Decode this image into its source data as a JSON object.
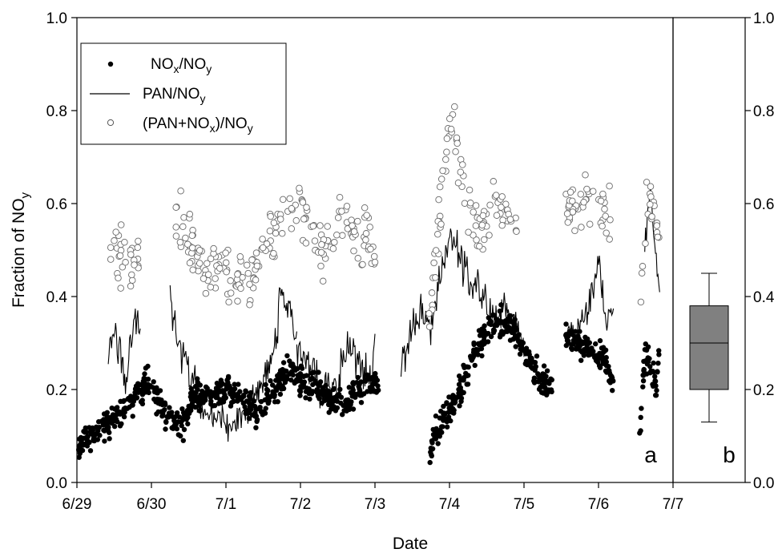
{
  "chart_data": [
    {
      "panel": "a",
      "type": "scatter",
      "panel_label": "a",
      "xlabel": "Date",
      "ylabel_main": "Fraction of NO",
      "ylabel_sub": "y",
      "x_ticks": [
        "6/29",
        "6/30",
        "7/1",
        "7/2",
        "7/3",
        "7/4",
        "7/5",
        "7/6",
        "7/7"
      ],
      "y_ticks": [
        "0.0",
        "0.2",
        "0.4",
        "0.6",
        "0.8",
        "1.0"
      ],
      "xlim": [
        0,
        8
      ],
      "ylim": [
        0,
        1
      ],
      "grid": false,
      "legend_position": "top-left",
      "legend": [
        {
          "main": "NO",
          "sub1": "x",
          "mid": "/NO",
          "sub2": "y",
          "tail": "",
          "marker": "filled-circle"
        },
        {
          "main": "PAN/NO",
          "sub1": "y",
          "mid": "",
          "sub2": "",
          "tail": "",
          "marker": "line"
        },
        {
          "main": "(PAN+NO",
          "sub1": "x",
          "mid": ")/NO",
          "sub2": "y",
          "tail": "",
          "marker": "open-circle"
        }
      ],
      "series": [
        {
          "name": "NOx/NOy",
          "marker": "filled-circle",
          "segments": [
            {
              "start": 0.02,
              "end": 1.55,
              "points": [
                [
                  0.02,
                  0.08
                ],
                [
                  0.25,
                  0.11
                ],
                [
                  0.5,
                  0.14
                ],
                [
                  0.7,
                  0.17
                ],
                [
                  0.85,
                  0.2
                ],
                [
                  1.0,
                  0.22
                ],
                [
                  1.15,
                  0.15
                ],
                [
                  1.3,
                  0.12
                ],
                [
                  1.45,
                  0.13
                ],
                [
                  1.55,
                  0.18
                ]
              ]
            },
            {
              "start": 1.55,
              "end": 2.95,
              "points": [
                [
                  1.55,
                  0.18
                ],
                [
                  1.8,
                  0.19
                ],
                [
                  2.0,
                  0.2
                ],
                [
                  2.2,
                  0.18
                ],
                [
                  2.45,
                  0.15
                ],
                [
                  2.65,
                  0.2
                ],
                [
                  2.85,
                  0.25
                ],
                [
                  2.95,
                  0.22
                ]
              ]
            },
            {
              "start": 2.95,
              "end": 4.05,
              "points": [
                [
                  2.95,
                  0.22
                ],
                [
                  3.2,
                  0.21
                ],
                [
                  3.4,
                  0.18
                ],
                [
                  3.6,
                  0.17
                ],
                [
                  3.8,
                  0.2
                ],
                [
                  4.0,
                  0.22
                ],
                [
                  4.05,
                  0.2
                ]
              ]
            },
            {
              "start": 4.72,
              "end": 6.4,
              "points": [
                [
                  4.72,
                  0.07
                ],
                [
                  4.9,
                  0.13
                ],
                [
                  5.05,
                  0.17
                ],
                [
                  5.2,
                  0.22
                ],
                [
                  5.4,
                  0.3
                ],
                [
                  5.6,
                  0.35
                ],
                [
                  5.8,
                  0.34
                ],
                [
                  5.95,
                  0.3
                ],
                [
                  6.1,
                  0.25
                ],
                [
                  6.25,
                  0.22
                ],
                [
                  6.4,
                  0.2
                ]
              ]
            },
            {
              "start": 6.55,
              "end": 7.2,
              "points": [
                [
                  6.55,
                  0.32
                ],
                [
                  6.75,
                  0.3
                ],
                [
                  6.95,
                  0.28
                ],
                [
                  7.1,
                  0.26
                ],
                [
                  7.2,
                  0.22
                ]
              ]
            },
            {
              "start": 7.55,
              "end": 7.82,
              "points": [
                [
                  7.55,
                  0.08
                ],
                [
                  7.62,
                  0.28
                ],
                [
                  7.7,
                  0.25
                ],
                [
                  7.78,
                  0.2
                ],
                [
                  7.82,
                  0.3
                ]
              ]
            }
          ]
        },
        {
          "name": "PAN/NOy",
          "marker": "line",
          "segments": [
            {
              "start": 0.42,
              "end": 0.85,
              "points": [
                [
                  0.42,
                  0.28
                ],
                [
                  0.55,
                  0.3
                ],
                [
                  0.65,
                  0.22
                ],
                [
                  0.75,
                  0.33
                ],
                [
                  0.85,
                  0.36
                ]
              ]
            },
            {
              "start": 1.25,
              "end": 2.95,
              "points": [
                [
                  1.25,
                  0.4
                ],
                [
                  1.35,
                  0.3
                ],
                [
                  1.5,
                  0.25
                ],
                [
                  1.65,
                  0.17
                ],
                [
                  1.85,
                  0.14
                ],
                [
                  2.05,
                  0.12
                ],
                [
                  2.25,
                  0.14
                ],
                [
                  2.45,
                  0.2
                ],
                [
                  2.65,
                  0.28
                ],
                [
                  2.75,
                  0.42
                ],
                [
                  2.85,
                  0.38
                ],
                [
                  2.95,
                  0.3
                ]
              ]
            },
            {
              "start": 2.95,
              "end": 4.0,
              "points": [
                [
                  2.95,
                  0.3
                ],
                [
                  3.1,
                  0.25
                ],
                [
                  3.3,
                  0.2
                ],
                [
                  3.5,
                  0.22
                ],
                [
                  3.65,
                  0.3
                ],
                [
                  3.8,
                  0.26
                ],
                [
                  3.95,
                  0.22
                ],
                [
                  4.0,
                  0.3
                ]
              ]
            },
            {
              "start": 4.35,
              "end": 6.0,
              "points": [
                [
                  4.35,
                  0.25
                ],
                [
                  4.55,
                  0.36
                ],
                [
                  4.75,
                  0.34
                ],
                [
                  4.9,
                  0.45
                ],
                [
                  5.0,
                  0.55
                ],
                [
                  5.1,
                  0.5
                ],
                [
                  5.25,
                  0.45
                ],
                [
                  5.45,
                  0.4
                ],
                [
                  5.6,
                  0.35
                ],
                [
                  5.75,
                  0.38
                ],
                [
                  5.9,
                  0.33
                ],
                [
                  6.0,
                  0.28
                ]
              ]
            },
            {
              "start": 6.58,
              "end": 7.2,
              "points": [
                [
                  6.58,
                  0.3
                ],
                [
                  6.75,
                  0.34
                ],
                [
                  6.9,
                  0.38
                ],
                [
                  7.0,
                  0.48
                ],
                [
                  7.1,
                  0.36
                ],
                [
                  7.2,
                  0.38
                ]
              ]
            },
            {
              "start": 7.62,
              "end": 7.82,
              "points": [
                [
                  7.62,
                  0.52
                ],
                [
                  7.7,
                  0.62
                ],
                [
                  7.76,
                  0.5
                ],
                [
                  7.82,
                  0.4
                ]
              ]
            }
          ]
        },
        {
          "name": "(PAN+NOx)/NOy",
          "marker": "open-circle",
          "segments": [
            {
              "start": 0.45,
              "end": 0.85,
              "points": [
                [
                  0.45,
                  0.48
                ],
                [
                  0.6,
                  0.5
                ],
                [
                  0.75,
                  0.47
                ],
                [
                  0.85,
                  0.52
                ]
              ]
            },
            {
              "start": 1.3,
              "end": 2.95,
              "points": [
                [
                  1.3,
                  0.6
                ],
                [
                  1.45,
                  0.55
                ],
                [
                  1.6,
                  0.5
                ],
                [
                  1.75,
                  0.43
                ],
                [
                  1.95,
                  0.48
                ],
                [
                  2.15,
                  0.43
                ],
                [
                  2.35,
                  0.45
                ],
                [
                  2.55,
                  0.5
                ],
                [
                  2.75,
                  0.56
                ],
                [
                  2.95,
                  0.6
                ]
              ]
            },
            {
              "start": 2.95,
              "end": 4.0,
              "points": [
                [
                  2.95,
                  0.6
                ],
                [
                  3.1,
                  0.55
                ],
                [
                  3.25,
                  0.48
                ],
                [
                  3.45,
                  0.52
                ],
                [
                  3.6,
                  0.57
                ],
                [
                  3.75,
                  0.5
                ],
                [
                  3.9,
                  0.55
                ],
                [
                  4.0,
                  0.5
                ]
              ]
            },
            {
              "start": 4.72,
              "end": 5.9,
              "points": [
                [
                  4.72,
                  0.35
                ],
                [
                  4.85,
                  0.55
                ],
                [
                  4.95,
                  0.7
                ],
                [
                  5.05,
                  0.8
                ],
                [
                  5.15,
                  0.65
                ],
                [
                  5.3,
                  0.58
                ],
                [
                  5.45,
                  0.55
                ],
                [
                  5.6,
                  0.6
                ],
                [
                  5.75,
                  0.58
                ],
                [
                  5.9,
                  0.55
                ]
              ]
            },
            {
              "start": 6.55,
              "end": 7.2,
              "points": [
                [
                  6.55,
                  0.6
                ],
                [
                  6.7,
                  0.58
                ],
                [
                  6.85,
                  0.62
                ],
                [
                  7.0,
                  0.6
                ],
                [
                  7.1,
                  0.58
                ],
                [
                  7.2,
                  0.62
                ]
              ]
            },
            {
              "start": 7.55,
              "end": 7.82,
              "points": [
                [
                  7.55,
                  0.35
                ],
                [
                  7.65,
                  0.6
                ],
                [
                  7.72,
                  0.58
                ],
                [
                  7.82,
                  0.5
                ]
              ]
            }
          ]
        }
      ]
    },
    {
      "panel": "b",
      "type": "box",
      "panel_label": "b",
      "ylim": [
        0,
        1
      ],
      "y_ticks": [
        "0.0",
        "0.2",
        "0.4",
        "0.6",
        "0.8",
        "1.0"
      ],
      "box": {
        "whisker_low": 0.13,
        "q1": 0.2,
        "median": 0.3,
        "q3": 0.38,
        "whisker_high": 0.45
      },
      "box_color": "#808080"
    }
  ]
}
